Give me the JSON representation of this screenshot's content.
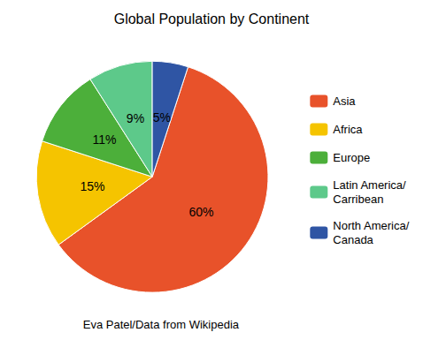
{
  "chart_data": {
    "type": "pie",
    "title": "Global Population by Continent",
    "subtitle": "Eva Patel/Data from Wikipedia",
    "categories": [
      "Asia",
      "Africa",
      "Europe",
      "Latin America/\nCarribean",
      "North America/\nCanada"
    ],
    "values": [
      60,
      15,
      11,
      9,
      5
    ],
    "value_labels": [
      "60%",
      "15%",
      "11%",
      "9%",
      "5%"
    ],
    "colors": [
      "#E8522A",
      "#F5C400",
      "#4CAF3A",
      "#5DC98A",
      "#2F55A4"
    ],
    "data_labels": true,
    "legend": "right"
  }
}
